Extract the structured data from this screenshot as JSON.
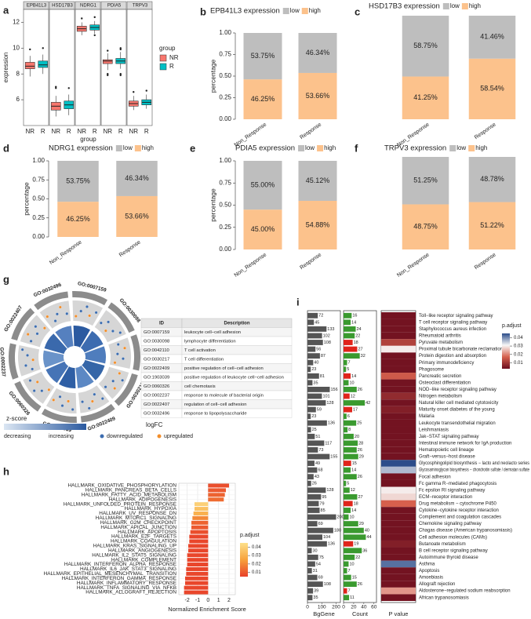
{
  "chart_data": [
    {
      "type": "box",
      "panel_label": "a",
      "facets": [
        "EPB41L3",
        "HSD17B3",
        "NDRG1",
        "PDIA5",
        "TRPV3"
      ],
      "categories": [
        "NR",
        "R"
      ],
      "xlabel": "group",
      "ylabel": "expression",
      "legend_title": "group",
      "ylim": [
        4,
        13
      ],
      "yticks": [
        6,
        8,
        10,
        12
      ],
      "series": [
        {
          "name": "NR",
          "color": "#f8766d",
          "boxes": [
            [
              7.8,
              8.4,
              8.6,
              8.9,
              9.4
            ],
            [
              4.7,
              5.2,
              5.5,
              5.8,
              6.3
            ],
            [
              11.0,
              11.3,
              11.5,
              11.7,
              12.0
            ],
            [
              8.3,
              8.8,
              9.0,
              9.1,
              9.6
            ],
            [
              5.2,
              5.5,
              5.7,
              5.9,
              6.3
            ]
          ],
          "outliers": [
            [
              9.9
            ],
            [
              6.9,
              7.0
            ],
            [
              12.3
            ],
            [
              7.9,
              8.0,
              9.8
            ],
            [
              6.6
            ]
          ]
        },
        {
          "name": "R",
          "color": "#00bfc4",
          "boxes": [
            [
              8.0,
              8.5,
              8.7,
              9.0,
              9.5
            ],
            [
              4.8,
              5.3,
              5.6,
              5.9,
              6.4
            ],
            [
              11.1,
              11.4,
              11.6,
              11.8,
              12.1
            ],
            [
              8.4,
              8.8,
              9.0,
              9.2,
              9.7
            ],
            [
              5.3,
              5.6,
              5.8,
              6.0,
              6.4
            ]
          ],
          "outliers": [
            [
              10.0
            ],
            [
              6.9
            ],
            [
              11.0,
              12.4
            ],
            [
              7.9,
              8.0,
              9.9,
              10.0
            ],
            [
              6.7
            ]
          ]
        }
      ]
    },
    {
      "type": "stacked_bar",
      "panel_label": "b",
      "title": "EPB41L3 expression",
      "categories": [
        "Non_Response",
        "Response"
      ],
      "ylabel": "percentage",
      "ylim": [
        0,
        1
      ],
      "yticks": [
        {
          "value": 0,
          "label": "0.00"
        },
        {
          "value": 0.25,
          "label": "0.25"
        },
        {
          "value": 0.5,
          "label": "0.50"
        },
        {
          "value": 0.75,
          "label": "0.75"
        },
        {
          "value": 1,
          "label": "1.00"
        }
      ],
      "series": [
        {
          "name": "low",
          "color": "#bebebe",
          "values": [
            0.5375,
            0.4634
          ],
          "value_labels": [
            "53.75%",
            "46.34%"
          ]
        },
        {
          "name": "high",
          "color": "#fcc28c",
          "values": [
            0.4625,
            0.5366
          ],
          "value_labels": [
            "46.25%",
            "53.66%"
          ]
        }
      ]
    },
    {
      "type": "stacked_bar",
      "panel_label": "c",
      "title": "HSD17B3 expression",
      "categories": [
        "Non_Response",
        "Response"
      ],
      "ylim": [
        0,
        1
      ],
      "series": [
        {
          "name": "low",
          "color": "#bebebe",
          "values": [
            0.5875,
            0.4146
          ],
          "value_labels": [
            "58.75%",
            "41.46%"
          ]
        },
        {
          "name": "high",
          "color": "#fcc28c",
          "values": [
            0.4125,
            0.5854
          ],
          "value_labels": [
            "41.25%",
            "58.54%"
          ]
        }
      ]
    },
    {
      "type": "stacked_bar",
      "panel_label": "d",
      "title": "NDRG1 expression",
      "categories": [
        "Non_Response",
        "Response"
      ],
      "ylabel": "percentage",
      "ylim": [
        0,
        1
      ],
      "yticks": [
        {
          "value": 0,
          "label": "0.00"
        },
        {
          "value": 0.25,
          "label": "0.25"
        },
        {
          "value": 0.5,
          "label": "0.50"
        },
        {
          "value": 0.75,
          "label": "0.75"
        },
        {
          "value": 1,
          "label": "1.00"
        }
      ],
      "series": [
        {
          "name": "low",
          "color": "#bebebe",
          "values": [
            0.5375,
            0.4634
          ],
          "value_labels": [
            "53.75%",
            "46.34%"
          ]
        },
        {
          "name": "high",
          "color": "#fcc28c",
          "values": [
            0.4625,
            0.5366
          ],
          "value_labels": [
            "46.25%",
            "53.66%"
          ]
        }
      ]
    },
    {
      "type": "stacked_bar",
      "panel_label": "e",
      "title": "PDIA5 expression",
      "categories": [
        "Non_Response",
        "Response"
      ],
      "ylabel": "percentage",
      "ylim": [
        0,
        1
      ],
      "yticks": [
        {
          "value": 0,
          "label": "0.00"
        },
        {
          "value": 0.25,
          "label": "0.25"
        },
        {
          "value": 0.5,
          "label": "0.50"
        },
        {
          "value": 0.75,
          "label": "0.75"
        },
        {
          "value": 1,
          "label": "1.00"
        }
      ],
      "series": [
        {
          "name": "low",
          "color": "#bebebe",
          "values": [
            0.55,
            0.4512
          ],
          "value_labels": [
            "55.00%",
            "45.12%"
          ]
        },
        {
          "name": "high",
          "color": "#fcc28c",
          "values": [
            0.45,
            0.5488
          ],
          "value_labels": [
            "45.00%",
            "54.88%"
          ]
        }
      ]
    },
    {
      "type": "stacked_bar",
      "panel_label": "f",
      "title": "TRPV3 expression",
      "categories": [
        "Non_Response",
        "Response"
      ],
      "ylim": [
        0,
        1
      ],
      "series": [
        {
          "name": "low",
          "color": "#bebebe",
          "values": [
            0.5125,
            0.4878
          ],
          "value_labels": [
            "51.25%",
            "48.78%"
          ]
        },
        {
          "name": "high",
          "color": "#fcc28c",
          "values": [
            0.4875,
            0.5122
          ],
          "value_labels": [
            "48.75%",
            "51.22%"
          ]
        }
      ]
    },
    {
      "type": "hbar",
      "panel_label": "h",
      "categories": [
        "HALLMARK_OXIDATIVE_PHOSPHORYLATION",
        "HALLMARK_PANCREAS_BETA_CELLS",
        "HALLMARK_FATTY_ACID_METABOLISM",
        "HALLMARK_ADIPOGENESIS",
        "HALLMARK_UNFOLDED_PROTEIN_RESPONSE",
        "HALLMARK_HYPOXIA",
        "HALLMARK_UV_RESPONSE_DN",
        "HALLMARK_MTORC1_SIGNALING",
        "HALLMARK_G2M_CHECKPOINT",
        "HALLMARK_APICAL_JUNCTION",
        "HALLMARK_APOPTOSIS",
        "HALLMARK_E2F_TARGETS",
        "HALLMARK_COAGULATION",
        "HALLMARK_KRAS_SIGNALING_UP",
        "HALLMARK_ANGIOGENESIS",
        "HALLMARK_IL2_STAT5_SIGNALING",
        "HALLMARK_COMPLEMENT",
        "HALLMARK_INTERFERON_ALPHA_RESPONSE",
        "HALLMARK_IL6_JAK_STAT3_SIGNALING",
        "HALLMARK_EPITHELIAL_MESENCHYMAL_TRANSITION",
        "HALLMARK_INTERFERON_GAMMA_RESPONSE",
        "HALLMARK_INFLAMMATORY_RESPONSE",
        "HALLMARK_TNFA_SIGNALING_VIA_NFKB",
        "HALLMARK_ALLOGRAFT_REJECTION"
      ],
      "values": [
        2.0,
        1.7,
        1.6,
        1.5,
        -1.3,
        -1.3,
        -1.4,
        -1.5,
        -1.6,
        -1.6,
        -1.7,
        -1.8,
        -1.8,
        -1.9,
        -1.9,
        -2.0,
        -2.0,
        -2.0,
        -2.1,
        -2.1,
        -2.2,
        -2.2,
        -2.3,
        -2.3
      ],
      "p_adjust": [
        0.008,
        0.01,
        0.012,
        0.014,
        0.04,
        0.035,
        0.03,
        0.02,
        0.012,
        0.01,
        0.008,
        0.006,
        0.006,
        0.006,
        0.006,
        0.006,
        0.006,
        0.006,
        0.006,
        0.006,
        0.006,
        0.006,
        0.006,
        0.006
      ],
      "clim": [
        0.005,
        0.045
      ],
      "colors": [
        "#e8412a",
        "#f7a13c",
        "#fde08a"
      ],
      "xlabel": "Normalized Enrichment Score",
      "xlim": [
        -2.8,
        2.6
      ],
      "xticks": [
        -2,
        -1,
        0,
        1,
        2
      ],
      "grid": true,
      "legend_title": "p.adjust",
      "legend_ticks": [
        0.01,
        0.02,
        0.03,
        0.04
      ]
    },
    {
      "type": "bar_heatmap",
      "panel_label": "i",
      "categories": [
        "Toll−like receptor signaling pathway",
        "T cell receptor signaling pathway",
        "Staphylococcus aureus infection",
        "Rheumatoid arthritis",
        "Pyruvate metabolism",
        "Proximal tubule bicarbonate reclamation",
        "Protein digestion and absorption",
        "Primary immunodeficiency",
        "Phagosome",
        "Pancreatic secretion",
        "Osteoclast differentiation",
        "NOD−like receptor signaling pathway",
        "Nitrogen metabolism",
        "Natural killer cell mediated cytotoxicity",
        "Maturity onset diabetes of the young",
        "Malaria",
        "Leukocyte transendothelial migration",
        "Leishmaniasis",
        "Jak−STAT signaling pathway",
        "Intestinal immune network for IgA production",
        "Hematopoietic cell lineage",
        "Graft−versus−host disease",
        "Glycosphingolipid biosynthesis − lacto and neolacto series",
        "Glycosaminoglycan biosynthesis − chondroitin sulfate / dermatan sulfate",
        "Focal adhesion",
        "Fc gamma R−mediated phagocytosis",
        "Fc epsilon RI signaling pathway",
        "ECM−receptor interaction",
        "Drug metabolism − cytochrome P450",
        "Cytokine−cytokine receptor interaction",
        "Complement and coagulation cascades",
        "Chemokine signaling pathway",
        "Chagas disease (American trypanosomiasis)",
        "Cell adhesion molecules (CAMs)",
        "Butanoate metabolism",
        "B cell receptor signaling pathway",
        "Autoimmune thyroid disease",
        "Asthma",
        "Apoptosis",
        "Amoebiasis",
        "Allograft rejection",
        "Aldosterone−regulated sodium reabsorption",
        "African trypanosomiasis"
      ],
      "label_colors": [
        "#3a9a2f",
        "#3a9a2f",
        "#3a9a2f",
        "#3a9a2f",
        "#e0241b",
        "#e0241b",
        "#3a9a2f",
        "#3a9a2f",
        "#3a9a2f",
        "#e0241b",
        "#3a9a2f",
        "#3a9a2f",
        "#e0241b",
        "#3a9a2f",
        "#e0241b",
        "#3a9a2f",
        "#3a9a2f",
        "#3a9a2f",
        "#3a9a2f",
        "#3a9a2f",
        "#3a9a2f",
        "#3a9a2f",
        "#e0241b",
        "#3a9a2f",
        "#3a9a2f",
        "#3a9a2f",
        "#3a9a2f",
        "#3a9a2f",
        "#e0241b",
        "#3a9a2f",
        "#3a9a2f",
        "#3a9a2f",
        "#3a9a2f",
        "#3a9a2f",
        "#e0241b",
        "#3a9a2f",
        "#3a9a2f",
        "#3a9a2f",
        "#3a9a2f",
        "#3a9a2f",
        "#3a9a2f",
        "#e0241b",
        "#3a9a2f"
      ],
      "bg_gene": {
        "name": "BgGene",
        "color": "#555555",
        "values": [
          72,
          45,
          133,
          102,
          108,
          56,
          87,
          40,
          23,
          81,
          35,
          156,
          101,
          128,
          59,
          23,
          136,
          25,
          51,
          117,
          73,
          155,
          49,
          68,
          43,
          26,
          128,
          95,
          79,
          85,
          200,
          69,
          180,
          104,
          136,
          30,
          75,
          54,
          31,
          69,
          108,
          39,
          35
        ],
        "xlim": [
          0,
          230
        ],
        "xticks": [
          0,
          100,
          200
        ]
      },
      "count": {
        "name": "Count",
        "values": [
          16,
          14,
          24,
          22,
          18,
          27,
          32,
          7,
          5,
          14,
          10,
          26,
          12,
          42,
          17,
          6,
          25,
          8,
          20,
          28,
          26,
          29,
          15,
          14,
          26,
          5,
          12,
          27,
          18,
          14,
          10,
          29,
          40,
          44,
          19,
          36,
          22,
          10,
          7,
          15,
          26,
          7,
          11
        ],
        "xlim": [
          0,
          65
        ],
        "xticks": [
          0,
          20,
          40,
          60
        ]
      },
      "p_value": {
        "name": "P value",
        "values": [
          0.004,
          0.004,
          0.004,
          0.004,
          0.012,
          0.03,
          0.004,
          0.004,
          0.004,
          0.016,
          0.004,
          0.004,
          0.008,
          0.004,
          0.006,
          0.004,
          0.004,
          0.004,
          0.004,
          0.004,
          0.004,
          0.004,
          0.045,
          0.036,
          0.004,
          0.004,
          0.03,
          0.028,
          0.017,
          0.004,
          0.004,
          0.004,
          0.004,
          0.004,
          0.006,
          0.004,
          0.004,
          0.042,
          0.004,
          0.004,
          0.004,
          0.022,
          0.004
        ],
        "clim": [
          0.003,
          0.045
        ],
        "colors": [
          "#6b0d1e",
          "#d6604d",
          "#f7f7f7",
          "#2c4d8a"
        ]
      },
      "legend_title": "p.adjust",
      "legend_ticks": [
        0.01,
        0.02,
        0.03,
        0.04
      ]
    }
  ],
  "go_panel": {
    "panel_label": "g",
    "terms": [
      "GO:0007159",
      "GO:0030098",
      "GO:0042110",
      "GO:0030217",
      "GO:0022409",
      "GO:1903039",
      "GO:0060326",
      "GO:0002237",
      "GO:0022407",
      "GO:0032496"
    ],
    "table": {
      "header": [
        "ID",
        "Description"
      ],
      "rows": [
        [
          "GO:0007159",
          "leukocyte cell−cell adhesion"
        ],
        [
          "GO:0030098",
          "lymphocyte differentiation"
        ],
        [
          "GO:0042110",
          "T cell activation"
        ],
        [
          "GO:0030217",
          "T cell differentiation"
        ],
        [
          "GO:0022409",
          "positive regulation of cell−cell adhesion"
        ],
        [
          "GO:1903039",
          "positive regulation of leukocyte cell−cell adhesion"
        ],
        [
          "GO:0060326",
          "cell chemotaxis"
        ],
        [
          "GO:0002237",
          "response to molecule of bacterial origin"
        ],
        [
          "GO:0022407",
          "regulation of cell−cell adhesion"
        ],
        [
          "GO:0032496",
          "response to lipopolysaccharide"
        ]
      ]
    },
    "legend": {
      "zscore": "z-score",
      "decreasing": "decreasing",
      "increasing": "increasing",
      "logfc": "logFC",
      "down": "downregulated",
      "up": "upregulated"
    }
  }
}
